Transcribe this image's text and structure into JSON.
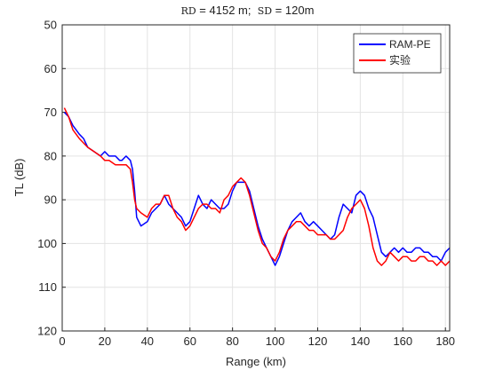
{
  "chart_data": {
    "type": "line",
    "title": {
      "rd_label": "RD",
      "rd_value": " = 4152 m;  ",
      "sd_label": "SD",
      "sd_value": " = 120m"
    },
    "xlabel": "Range (km)",
    "ylabel": "TL (dB)",
    "xlim": [
      0,
      182
    ],
    "ylim": [
      50,
      120
    ],
    "y_reversed": true,
    "xticks": [
      0,
      20,
      40,
      60,
      80,
      100,
      120,
      140,
      160,
      180
    ],
    "yticks": [
      50,
      60,
      70,
      80,
      90,
      100,
      110,
      120
    ],
    "grid": true,
    "legend_position": "top-right",
    "series": [
      {
        "name": "RAM-PE",
        "color": "#0000ff",
        "x": [
          1,
          3,
          5,
          8,
          10,
          12,
          15,
          18,
          20,
          22,
          25,
          27,
          28,
          30,
          32,
          33,
          34,
          35,
          37,
          40,
          42,
          44,
          46,
          48,
          50,
          52,
          54,
          56,
          58,
          60,
          62,
          64,
          66,
          68,
          70,
          72,
          74,
          76,
          78,
          80,
          82,
          84,
          86,
          88,
          90,
          92,
          94,
          96,
          98,
          100,
          102,
          104,
          106,
          108,
          110,
          112,
          114,
          116,
          118,
          120,
          122,
          124,
          126,
          128,
          130,
          132,
          134,
          136,
          138,
          140,
          142,
          144,
          146,
          148,
          150,
          152,
          154,
          156,
          158,
          160,
          162,
          164,
          166,
          168,
          170,
          172,
          174,
          176,
          178,
          180,
          182
        ],
        "y": [
          70,
          71,
          73,
          75,
          76,
          78,
          79,
          80,
          79,
          80,
          80,
          81,
          81,
          80,
          81,
          83,
          88,
          94,
          96,
          95,
          93,
          92,
          91,
          89,
          91,
          92,
          93,
          94,
          96,
          95,
          92,
          89,
          91,
          92,
          90,
          91,
          92,
          92,
          91,
          88,
          86,
          86,
          86,
          88,
          92,
          96,
          99,
          101,
          103,
          105,
          103,
          100,
          97,
          95,
          94,
          93,
          95,
          96,
          95,
          96,
          97,
          98,
          99,
          98,
          94,
          91,
          92,
          93,
          89,
          88,
          89,
          92,
          94,
          98,
          102,
          103,
          102,
          101,
          102,
          101,
          102,
          102,
          101,
          101,
          102,
          102,
          103,
          103,
          104,
          102,
          101
        ]
      },
      {
        "name": "实验",
        "color": "#ff0000",
        "x": [
          1,
          3,
          5,
          8,
          10,
          12,
          15,
          18,
          20,
          22,
          25,
          27,
          28,
          30,
          32,
          33,
          34,
          35,
          37,
          40,
          42,
          44,
          46,
          48,
          50,
          52,
          54,
          56,
          58,
          60,
          62,
          64,
          66,
          68,
          70,
          72,
          74,
          76,
          78,
          80,
          82,
          84,
          86,
          88,
          90,
          92,
          94,
          96,
          98,
          100,
          102,
          104,
          106,
          108,
          110,
          112,
          114,
          116,
          118,
          120,
          122,
          124,
          126,
          128,
          130,
          132,
          134,
          136,
          138,
          140,
          142,
          144,
          146,
          148,
          150,
          152,
          154,
          156,
          158,
          160,
          162,
          164,
          166,
          168,
          170,
          172,
          174,
          176,
          178,
          180,
          182
        ],
        "y": [
          69,
          71,
          74,
          76,
          77,
          78,
          79,
          80,
          81,
          81,
          82,
          82,
          82,
          82,
          83,
          86,
          90,
          92,
          93,
          94,
          92,
          91,
          91,
          89,
          89,
          92,
          94,
          95,
          97,
          96,
          94,
          92,
          91,
          91,
          92,
          92,
          93,
          90,
          89,
          87,
          86,
          85,
          86,
          89,
          93,
          97,
          100,
          101,
          103,
          104,
          102,
          99,
          97,
          96,
          95,
          95,
          96,
          97,
          97,
          98,
          98,
          98,
          99,
          99,
          98,
          97,
          94,
          92,
          91,
          90,
          92,
          96,
          101,
          104,
          105,
          104,
          102,
          103,
          104,
          103,
          103,
          104,
          104,
          103,
          103,
          104,
          104,
          105,
          104,
          105,
          104
        ]
      }
    ]
  }
}
